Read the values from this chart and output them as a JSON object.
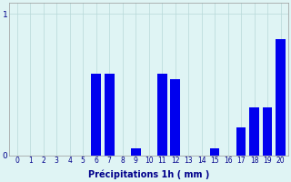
{
  "categories": [
    "0",
    "1",
    "2",
    "3",
    "4",
    "5",
    "6",
    "7",
    "8",
    "9",
    "10",
    "11",
    "12",
    "13",
    "14",
    "15",
    "16",
    "17",
    "18",
    "19",
    "20"
  ],
  "values": [
    0,
    0,
    0,
    0,
    0,
    0,
    0.58,
    0.58,
    0,
    0.05,
    0,
    0.58,
    0.54,
    0,
    0,
    0.05,
    0,
    0.2,
    0.34,
    0.34,
    0.82
  ],
  "bar_color": "#0000ee",
  "background_color": "#dff4f4",
  "grid_color": "#b8d8d8",
  "text_color": "#00008b",
  "xlabel": "Précipitations 1h ( mm )",
  "ylim": [
    0,
    1.08
  ],
  "yticks": [
    0,
    1
  ],
  "xlim": [
    -0.6,
    20.6
  ]
}
